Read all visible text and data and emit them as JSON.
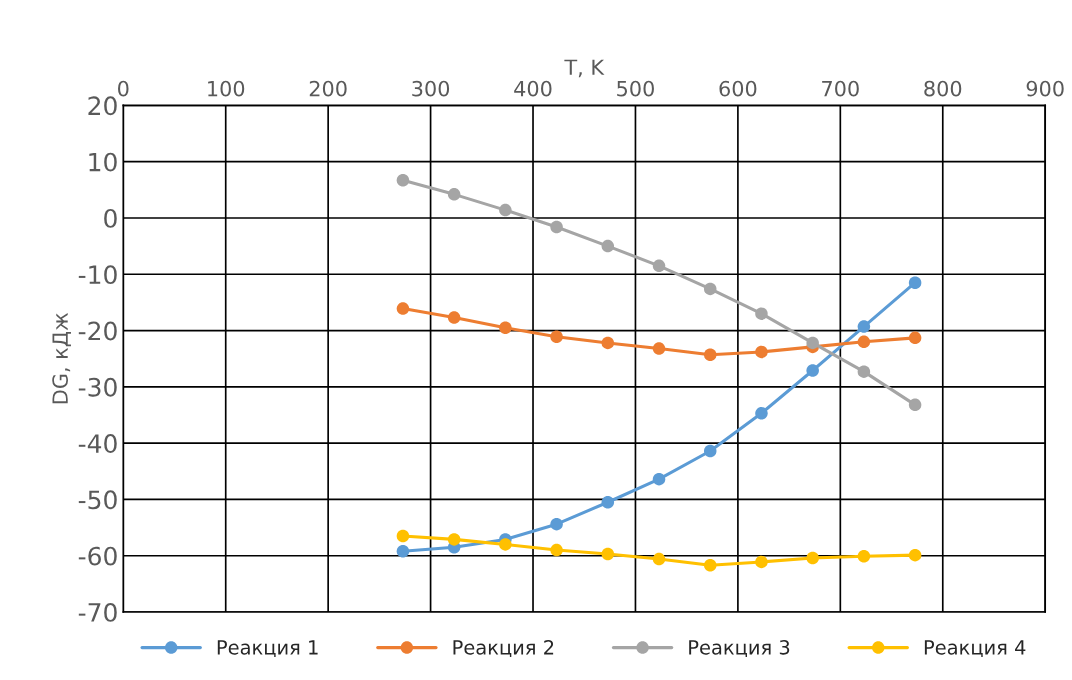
{
  "chart_data": {
    "type": "line",
    "xlabel": "T, K",
    "ylabel": "DG, кДж",
    "x": [
      273,
      323,
      373,
      423,
      473,
      523,
      573,
      623,
      673,
      723,
      773
    ],
    "series": [
      {
        "name": "Реакция 1",
        "color": "#5b9bd5",
        "values": [
          -59.2,
          -58.5,
          -57.1,
          -54.4,
          -50.5,
          -46.4,
          -41.4,
          -34.7,
          -27.1,
          -19.3,
          -11.5
        ]
      },
      {
        "name": "Реакция 2",
        "color": "#ed7d31",
        "values": [
          -16.1,
          -17.7,
          -19.5,
          -21.1,
          -22.2,
          -23.2,
          -24.3,
          -23.8,
          -22.9,
          -22.0,
          -21.3
        ]
      },
      {
        "name": "Реакция 3",
        "color": "#a5a5a5",
        "values": [
          6.7,
          4.2,
          1.4,
          -1.6,
          -5.0,
          -8.5,
          -12.6,
          -17.0,
          -22.2,
          -27.3,
          -33.2
        ]
      },
      {
        "name": "Реакция 4",
        "color": "#ffc000",
        "values": [
          -56.5,
          -57.1,
          -58.0,
          -59.0,
          -59.7,
          -60.6,
          -61.7,
          -61.1,
          -60.4,
          -60.1,
          -59.9
        ]
      }
    ],
    "xlim": [
      0,
      900
    ],
    "xticks": [
      0,
      100,
      200,
      300,
      400,
      500,
      600,
      700,
      800,
      900
    ],
    "ylim": [
      -70,
      20
    ],
    "yticks": [
      -70,
      -60,
      -50,
      -40,
      -30,
      -20,
      -10,
      0,
      10,
      20
    ],
    "grid": true,
    "legend": "bottom",
    "marker": "circle",
    "line_style": "solid"
  }
}
